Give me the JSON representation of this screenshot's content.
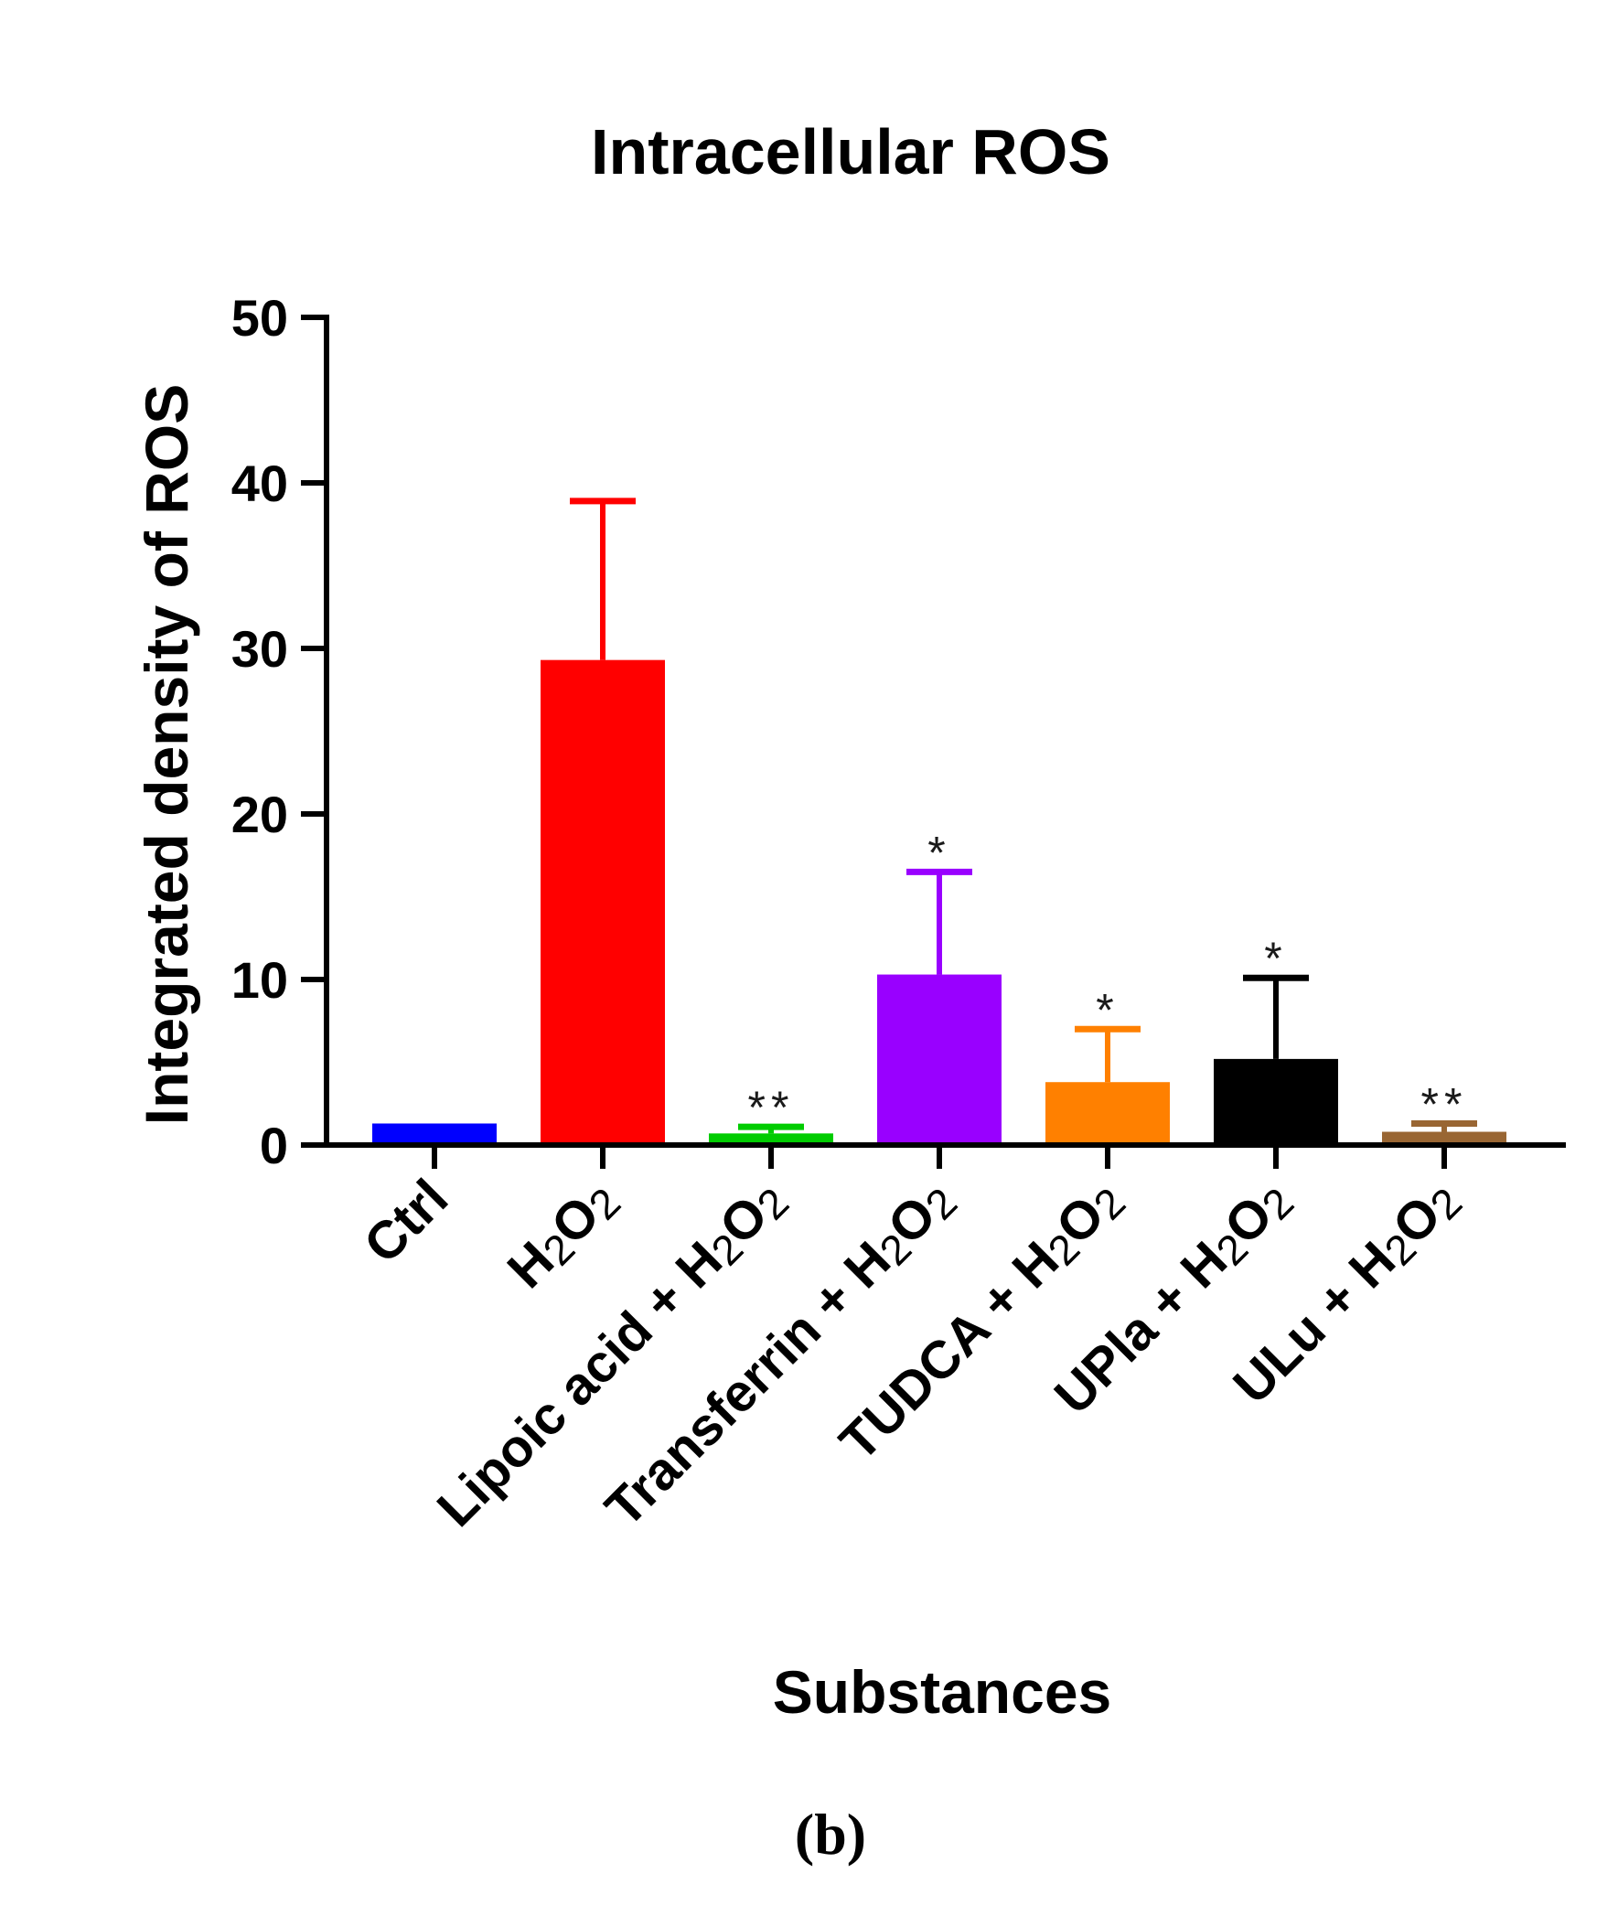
{
  "chart_data": {
    "type": "bar",
    "title": "Intracellular ROS",
    "xlabel": "Substances",
    "ylabel": "Integrated density of ROS",
    "ylim": [
      0,
      50
    ],
    "yticks": [
      "0",
      "10",
      "20",
      "30",
      "40",
      "50"
    ],
    "categories": [
      {
        "label": "Ctrl",
        "main": "Ctrl",
        "sub": "",
        "tail": ""
      },
      {
        "label": "H2O2",
        "main": "H",
        "sub": "2",
        "tail": "O",
        "sub2": "2"
      },
      {
        "label": "Lipoic acid + H2O2",
        "main": "Lipoic acid + H",
        "sub": "2",
        "tail": "O",
        "sub2": "2"
      },
      {
        "label": "Transferrin + H2O2",
        "main": "Transferrin + H",
        "sub": "2",
        "tail": "O",
        "sub2": "2"
      },
      {
        "label": "TUDCA + H2O2",
        "main": "TUDCA + H",
        "sub": "2",
        "tail": "O",
        "sub2": "2"
      },
      {
        "label": "UPla + H2O2",
        "main": "UPla + H",
        "sub": "2",
        "tail": "O",
        "sub2": "2"
      },
      {
        "label": "ULu + H2O2",
        "main": "ULu + H",
        "sub": "2",
        "tail": "O",
        "sub2": "2"
      }
    ],
    "values": [
      1.3,
      29.3,
      0.7,
      10.3,
      3.8,
      5.2,
      0.8
    ],
    "errors": [
      0,
      9.6,
      0.4,
      6.2,
      3.2,
      4.9,
      0.5
    ],
    "colors": [
      "#0000ff",
      "#ff0000",
      "#00cc00",
      "#9900ff",
      "#ff8000",
      "#000000",
      "#996633"
    ],
    "significance": [
      "",
      "",
      "**",
      "*",
      "*",
      "*",
      "**"
    ]
  },
  "panel_label": "(b)"
}
